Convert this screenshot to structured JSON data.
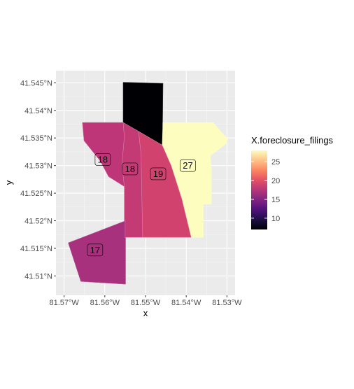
{
  "chart_data": {
    "type": "choropleth-map",
    "xlabel": "x",
    "ylabel": "y",
    "xlim": [
      -81.572,
      -81.528
    ],
    "ylim": [
      41.5065,
      41.5472
    ],
    "x_ticks": [
      {
        "value": -81.57,
        "label": "81.57°W"
      },
      {
        "value": -81.56,
        "label": "81.56°W"
      },
      {
        "value": -81.55,
        "label": "81.55°W"
      },
      {
        "value": -81.54,
        "label": "81.54°W"
      },
      {
        "value": -81.53,
        "label": "81.53°W"
      }
    ],
    "y_ticks": [
      {
        "value": 41.51,
        "label": "41.51°N"
      },
      {
        "value": 41.515,
        "label": "41.515°N"
      },
      {
        "value": 41.52,
        "label": "41.52°N"
      },
      {
        "value": 41.525,
        "label": "41.525°N"
      },
      {
        "value": 41.53,
        "label": "41.53°N"
      },
      {
        "value": 41.535,
        "label": "41.535°N"
      },
      {
        "value": 41.54,
        "label": "41.54°N"
      },
      {
        "value": 41.545,
        "label": "41.545°N"
      }
    ],
    "legend": {
      "title": "X.foreclosure_filings",
      "range": [
        7,
        28
      ],
      "ticks": [
        10,
        15,
        20,
        25
      ],
      "placement": "right"
    },
    "regions": [
      {
        "value": 7,
        "color": "#000004",
        "polygon": [
          [
            -81.5555,
            41.5451
          ],
          [
            -81.5457,
            41.5449
          ],
          [
            -81.5458,
            41.5378
          ],
          [
            -81.5459,
            41.5337
          ],
          [
            -81.5517,
            41.5362
          ],
          [
            -81.5555,
            41.5378
          ]
        ]
      },
      {
        "value": 27,
        "color": "#fcfdbf",
        "polygon": [
          [
            -81.5457,
            41.5378
          ],
          [
            -81.5334,
            41.5378
          ],
          [
            -81.5297,
            41.5347
          ],
          [
            -81.5305,
            41.5338
          ],
          [
            -81.5341,
            41.5318
          ],
          [
            -81.5338,
            41.529
          ],
          [
            -81.5338,
            41.523
          ],
          [
            -81.5358,
            41.523
          ],
          [
            -81.5358,
            41.517
          ],
          [
            -81.5388,
            41.517
          ],
          [
            -81.5411,
            41.524
          ],
          [
            -81.5437,
            41.53
          ],
          [
            -81.5459,
            41.5337
          ]
        ]
      },
      {
        "value": 19,
        "color": "#d1426f",
        "polygon": [
          [
            -81.5517,
            41.5362
          ],
          [
            -81.5459,
            41.5337
          ],
          [
            -81.5437,
            41.53
          ],
          [
            -81.5411,
            41.524
          ],
          [
            -81.5388,
            41.517
          ],
          [
            -81.5507,
            41.517
          ],
          [
            -81.5509,
            41.524
          ],
          [
            -81.5511,
            41.532
          ]
        ]
      },
      {
        "value": 18,
        "color": "#c33a75",
        "polygon": [
          [
            -81.5555,
            41.5378
          ],
          [
            -81.5517,
            41.5362
          ],
          [
            -81.5511,
            41.532
          ],
          [
            -81.5509,
            41.524
          ],
          [
            -81.5507,
            41.517
          ],
          [
            -81.5552,
            41.517
          ],
          [
            -81.5552,
            41.5262
          ],
          [
            -81.5558,
            41.5302
          ],
          [
            -81.5552,
            41.5352
          ]
        ]
      },
      {
        "value": 18,
        "color": "#be3678",
        "polygon": [
          [
            -81.5655,
            41.5378
          ],
          [
            -81.5555,
            41.5378
          ],
          [
            -81.5552,
            41.5352
          ],
          [
            -81.5558,
            41.5302
          ],
          [
            -81.5552,
            41.5262
          ],
          [
            -81.5591,
            41.528
          ],
          [
            -81.5611,
            41.5308
          ],
          [
            -81.5651,
            41.5345
          ]
        ]
      },
      {
        "value": 17,
        "color": "#a7317d",
        "polygon": [
          [
            -81.5549,
            41.52
          ],
          [
            -81.569,
            41.516
          ],
          [
            -81.5659,
            41.509
          ],
          [
            -81.5549,
            41.5085
          ]
        ]
      }
    ],
    "labels": [
      {
        "text": "18",
        "x": -81.5605,
        "y": 41.5311
      },
      {
        "text": "18",
        "x": -81.5538,
        "y": 41.5294
      },
      {
        "text": "19",
        "x": -81.5469,
        "y": 41.5285
      },
      {
        "text": "27",
        "x": -81.5396,
        "y": 41.53
      },
      {
        "text": "17",
        "x": -81.5624,
        "y": 41.5147
      }
    ]
  }
}
